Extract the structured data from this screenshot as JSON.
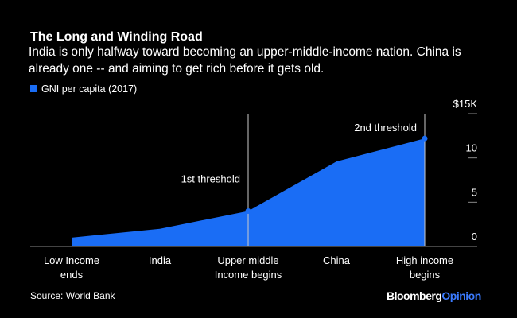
{
  "chart_data": {
    "type": "area",
    "title": "The Long and Winding Road",
    "subtitle": "India is only halfway toward becoming an upper-middle-income nation. China is already one -- and aiming to get rich before it gets old.",
    "categories": [
      "Low Income\nends",
      "India",
      "Upper middle\nIncome begins",
      "China",
      "High income\nbegins"
    ],
    "series": [
      {
        "name": "GNI per capita (2017)",
        "color": "#1a6df5",
        "values": [
          1.0,
          2.0,
          4.0,
          9.6,
          12.2
        ]
      }
    ],
    "ylim": [
      0,
      15
    ],
    "yticks": [
      0,
      5,
      10,
      {
        "value": 15,
        "label": "$15K"
      }
    ],
    "annotations": [
      "1st threshold",
      "2nd threshold"
    ],
    "source": "Source: World Bank",
    "brand": [
      "Bloomberg",
      "Opinion"
    ]
  }
}
